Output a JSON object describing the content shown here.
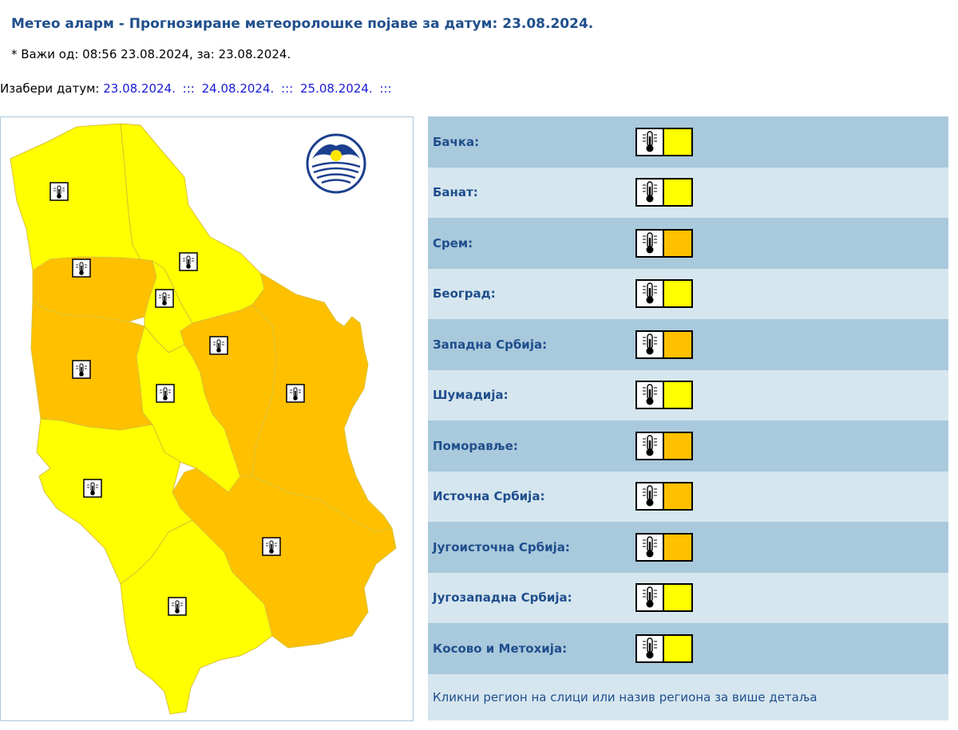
{
  "header": {
    "title": "Метео аларм - Прогнозиране метеоролошке појаве за датум:  23.08.2024.",
    "validity": "* Важи од: 08:56 23.08.2024, за: 23.08.2024."
  },
  "date_picker": {
    "label": "Изабери датум:",
    "dates": [
      "23.08.2024.",
      "24.08.2024.",
      "25.08.2024."
    ],
    "separator": ":::"
  },
  "colors": {
    "yellow": "#ffff00",
    "orange": "#ffc000",
    "row_dark": "#a9c9dc",
    "row_light": "#d6e6ef",
    "region_text": "#1f4e8c",
    "date_link": "#1a1ad6"
  },
  "map": {
    "logo_name": "rhmz-logo",
    "regions": [
      {
        "name": "Бачка",
        "level": "yellow"
      },
      {
        "name": "Банат",
        "level": "yellow"
      },
      {
        "name": "Срем",
        "level": "orange"
      },
      {
        "name": "Београд",
        "level": "yellow"
      },
      {
        "name": "Западна Србија",
        "level": "orange"
      },
      {
        "name": "Шумадија",
        "level": "yellow"
      },
      {
        "name": "Поморавље",
        "level": "orange"
      },
      {
        "name": "Источна Србија",
        "level": "orange"
      },
      {
        "name": "Југоисточна Србија",
        "level": "orange"
      },
      {
        "name": "Југозападна Србија",
        "level": "yellow"
      },
      {
        "name": "Косово и Метохија",
        "level": "yellow"
      }
    ]
  },
  "regions_table": {
    "rows": [
      {
        "label": "Бачка:",
        "icon": "thermometer-icon",
        "level": "yellow",
        "color": "#ffff00"
      },
      {
        "label": "Банат:",
        "icon": "thermometer-icon",
        "level": "yellow",
        "color": "#ffff00"
      },
      {
        "label": "Срем:",
        "icon": "thermometer-icon",
        "level": "orange",
        "color": "#ffc000"
      },
      {
        "label": "Београд:",
        "icon": "thermometer-icon",
        "level": "yellow",
        "color": "#ffff00"
      },
      {
        "label": "Западна Србија:",
        "icon": "thermometer-icon",
        "level": "orange",
        "color": "#ffc000"
      },
      {
        "label": "Шумадија:",
        "icon": "thermometer-icon",
        "level": "yellow",
        "color": "#ffff00"
      },
      {
        "label": "Поморавље:",
        "icon": "thermometer-icon",
        "level": "orange",
        "color": "#ffc000"
      },
      {
        "label": "Источна Србија:",
        "icon": "thermometer-icon",
        "level": "orange",
        "color": "#ffc000"
      },
      {
        "label": "Југоисточна Србија:",
        "icon": "thermometer-icon",
        "level": "orange",
        "color": "#ffc000"
      },
      {
        "label": "Југозападна Србија:",
        "icon": "thermometer-icon",
        "level": "yellow",
        "color": "#ffff00"
      },
      {
        "label": "Косово и Метохија:",
        "icon": "thermometer-icon",
        "level": "yellow",
        "color": "#ffff00"
      }
    ],
    "footer_hint": "Кликни регион на слици или назив региона за више детаља"
  }
}
